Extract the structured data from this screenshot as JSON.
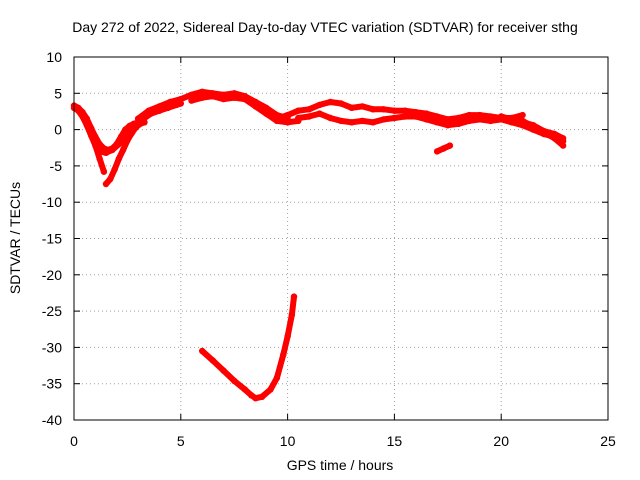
{
  "chart_data": {
    "type": "scatter",
    "title": "Day 272 of 2022, Sidereal Day-to-day VTEC variation (SDTVAR) for receiver sthg",
    "xlabel": "GPS time / hours",
    "ylabel": "SDTVAR / TECUs",
    "xlim": [
      0,
      25
    ],
    "ylim": [
      -40,
      10
    ],
    "xticks": [
      0,
      5,
      10,
      15,
      20,
      25
    ],
    "yticks": [
      10,
      5,
      0,
      -5,
      -10,
      -15,
      -20,
      -25,
      -30,
      -35,
      -40
    ],
    "grid": true,
    "colors": {
      "series": "#ff0000",
      "grid": "#a0a0a0",
      "frame": "#000000"
    },
    "series": [
      {
        "name": "sat-a-early",
        "points": [
          [
            0.0,
            3.0
          ],
          [
            0.2,
            2.6
          ],
          [
            0.4,
            1.8
          ],
          [
            0.6,
            0.6
          ],
          [
            0.8,
            -0.8
          ],
          [
            1.0,
            -2.2
          ],
          [
            1.2,
            -4.0
          ],
          [
            1.4,
            -5.8
          ]
        ]
      },
      {
        "name": "sat-b-early",
        "points": [
          [
            0.0,
            3.3
          ],
          [
            0.2,
            3.0
          ],
          [
            0.4,
            2.4
          ],
          [
            0.6,
            1.5
          ],
          [
            0.8,
            0.2
          ],
          [
            1.0,
            -1.0
          ],
          [
            1.2,
            -2.0
          ],
          [
            1.4,
            -2.6
          ],
          [
            1.6,
            -2.8
          ],
          [
            1.8,
            -2.6
          ],
          [
            2.0,
            -2.0
          ],
          [
            2.2,
            -1.0
          ],
          [
            2.4,
            0.0
          ],
          [
            2.6,
            0.5
          ],
          [
            2.8,
            0.8
          ],
          [
            3.0,
            1.0
          ]
        ]
      },
      {
        "name": "sat-c-early",
        "points": [
          [
            1.5,
            -7.5
          ],
          [
            1.7,
            -6.8
          ],
          [
            1.9,
            -5.5
          ],
          [
            2.1,
            -4.0
          ],
          [
            2.3,
            -2.8
          ],
          [
            2.5,
            -1.5
          ],
          [
            2.7,
            -0.5
          ],
          [
            2.9,
            0.3
          ],
          [
            3.1,
            0.8
          ],
          [
            3.3,
            1.0
          ]
        ]
      },
      {
        "name": "sat-d-early",
        "points": [
          [
            1.2,
            -3.0
          ],
          [
            1.5,
            -3.2
          ],
          [
            1.8,
            -2.8
          ],
          [
            2.1,
            -2.0
          ],
          [
            2.4,
            -1.2
          ],
          [
            2.7,
            -0.2
          ],
          [
            3.0,
            0.8
          ],
          [
            3.3,
            1.6
          ],
          [
            3.6,
            2.2
          ],
          [
            4.0,
            2.6
          ],
          [
            4.4,
            3.0
          ],
          [
            4.8,
            3.4
          ],
          [
            5.0,
            3.6
          ]
        ]
      },
      {
        "name": "sat-e-midday",
        "points": [
          [
            3.0,
            1.5
          ],
          [
            3.5,
            2.6
          ],
          [
            4.0,
            3.2
          ],
          [
            4.5,
            3.8
          ],
          [
            5.0,
            4.2
          ],
          [
            5.5,
            4.8
          ],
          [
            6.0,
            5.2
          ],
          [
            6.5,
            5.0
          ],
          [
            7.0,
            4.8
          ],
          [
            7.5,
            5.0
          ],
          [
            8.0,
            4.6
          ],
          [
            8.5,
            3.8
          ],
          [
            9.0,
            3.0
          ],
          [
            9.5,
            2.0
          ],
          [
            10.0,
            1.6
          ]
        ]
      },
      {
        "name": "sat-f-midday",
        "points": [
          [
            5.5,
            4.0
          ],
          [
            6.0,
            4.4
          ],
          [
            6.5,
            4.6
          ],
          [
            7.0,
            4.2
          ],
          [
            7.5,
            4.4
          ],
          [
            8.0,
            4.2
          ],
          [
            8.5,
            3.2
          ],
          [
            9.0,
            2.2
          ],
          [
            9.5,
            1.2
          ],
          [
            10.0,
            1.0
          ],
          [
            10.5,
            1.2
          ]
        ]
      },
      {
        "name": "sat-g-afternoon",
        "points": [
          [
            9.5,
            1.5
          ],
          [
            10.0,
            2.0
          ],
          [
            10.5,
            2.6
          ],
          [
            11.0,
            2.8
          ],
          [
            11.5,
            3.4
          ],
          [
            12.0,
            3.8
          ],
          [
            12.5,
            3.6
          ],
          [
            13.0,
            3.0
          ],
          [
            13.5,
            3.2
          ],
          [
            14.0,
            2.8
          ],
          [
            14.5,
            2.8
          ],
          [
            15.0,
            2.6
          ],
          [
            15.5,
            2.6
          ],
          [
            16.0,
            2.4
          ],
          [
            16.5,
            2.2
          ],
          [
            17.0,
            1.8
          ],
          [
            17.5,
            1.4
          ],
          [
            18.0,
            1.6
          ],
          [
            18.5,
            2.0
          ],
          [
            19.0,
            2.0
          ],
          [
            19.5,
            1.8
          ],
          [
            20.0,
            1.6
          ],
          [
            20.5,
            1.6
          ],
          [
            21.0,
            2.0
          ]
        ]
      },
      {
        "name": "sat-h-afternoon",
        "points": [
          [
            10.5,
            1.6
          ],
          [
            11.0,
            1.8
          ],
          [
            11.5,
            2.2
          ],
          [
            12.0,
            1.6
          ],
          [
            12.5,
            1.2
          ],
          [
            13.0,
            1.0
          ],
          [
            13.5,
            1.2
          ],
          [
            14.0,
            1.0
          ],
          [
            14.5,
            1.4
          ],
          [
            15.0,
            1.6
          ],
          [
            15.5,
            1.8
          ],
          [
            16.0,
            1.8
          ],
          [
            16.5,
            1.4
          ],
          [
            17.0,
            1.0
          ],
          [
            17.5,
            0.6
          ],
          [
            18.0,
            0.8
          ],
          [
            18.5,
            1.2
          ],
          [
            19.0,
            1.4
          ],
          [
            19.5,
            1.2
          ],
          [
            20.0,
            1.4
          ],
          [
            20.5,
            1.0
          ],
          [
            21.0,
            0.6
          ],
          [
            21.5,
            0.0
          ],
          [
            22.0,
            -0.6
          ],
          [
            22.5,
            -1.0
          ],
          [
            22.9,
            -1.6
          ]
        ]
      },
      {
        "name": "sat-i-evening",
        "points": [
          [
            20.0,
            1.8
          ],
          [
            20.5,
            1.4
          ],
          [
            21.0,
            1.0
          ],
          [
            21.5,
            0.6
          ],
          [
            22.0,
            -0.2
          ],
          [
            22.5,
            -0.6
          ],
          [
            22.9,
            -1.2
          ]
        ]
      },
      {
        "name": "sat-j-evening",
        "points": [
          [
            21.0,
            1.2
          ],
          [
            21.5,
            0.4
          ],
          [
            22.0,
            -0.4
          ],
          [
            22.5,
            -1.2
          ],
          [
            22.9,
            -2.2
          ]
        ]
      },
      {
        "name": "sat-k-short",
        "points": [
          [
            17.0,
            -3.0
          ],
          [
            17.3,
            -2.6
          ],
          [
            17.6,
            -2.2
          ]
        ]
      },
      {
        "name": "sat-l-dip",
        "points": [
          [
            6.0,
            -30.5
          ],
          [
            6.5,
            -31.8
          ],
          [
            7.0,
            -33.2
          ],
          [
            7.5,
            -34.6
          ],
          [
            8.0,
            -35.8
          ],
          [
            8.3,
            -36.6
          ],
          [
            8.5,
            -37.0
          ],
          [
            8.8,
            -36.8
          ],
          [
            9.2,
            -35.8
          ],
          [
            9.5,
            -34.2
          ],
          [
            9.8,
            -31.0
          ],
          [
            10.0,
            -28.5
          ],
          [
            10.2,
            -25.5
          ],
          [
            10.3,
            -23.0
          ]
        ]
      }
    ]
  }
}
